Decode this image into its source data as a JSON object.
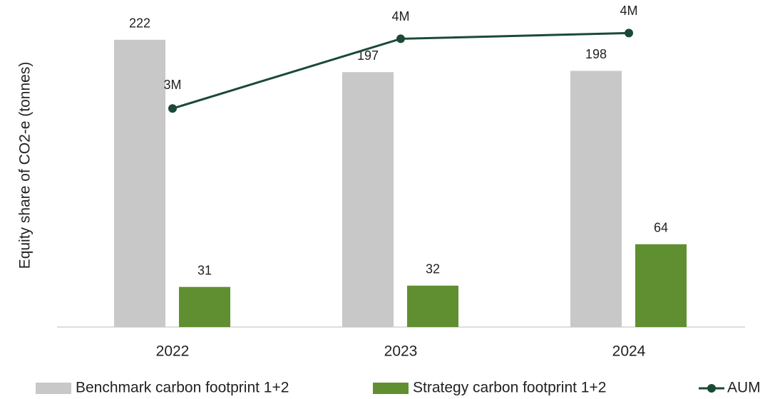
{
  "chart_data": {
    "type": "bar",
    "ylabel": "Equity share of CO2-e (tonnes)",
    "categories": [
      "2022",
      "2023",
      "2024"
    ],
    "ylim": [
      0,
      250
    ],
    "y2lim": [
      0,
      4500000
    ],
    "series": [
      {
        "name": "Benchmark carbon footprint 1+2",
        "color": "#c8c8c8",
        "values": [
          222,
          197,
          198
        ]
      },
      {
        "name": "Strategy carbon footprint 1+2",
        "color": "#5f8f31",
        "values": [
          31,
          32,
          64
        ]
      },
      {
        "name": "AUM",
        "type": "line",
        "axis": "y2",
        "color": "#1a4a35",
        "values": [
          3040000,
          4010000,
          4090000
        ],
        "value_labels": [
          "3M",
          "4M",
          "4M"
        ]
      }
    ],
    "legend": "bottom"
  }
}
